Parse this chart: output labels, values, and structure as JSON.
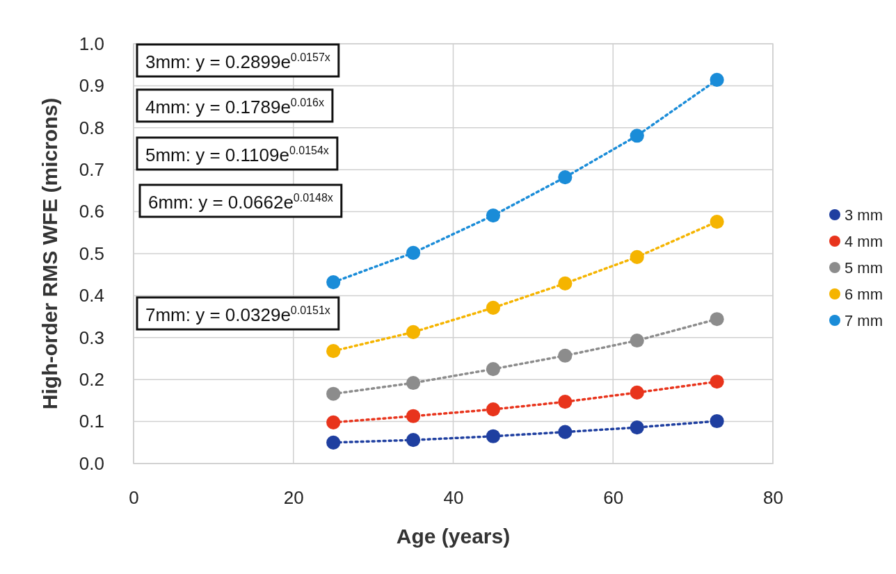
{
  "chart_data": {
    "type": "line",
    "xlabel": "Age (years)",
    "ylabel": "High-order RMS WFE (microns)",
    "x": [
      25,
      35,
      45,
      54,
      63,
      73
    ],
    "xlim": [
      0,
      80
    ],
    "xticks": [
      0,
      20,
      40,
      60,
      80
    ],
    "ylim": [
      0,
      1
    ],
    "yticks": [
      {
        "value": 0,
        "label": "0.0"
      },
      0.1,
      0.2,
      0.3,
      0.4,
      0.5,
      0.6,
      0.7,
      0.8,
      0.9,
      {
        "value": 1,
        "label": "1.0"
      }
    ],
    "grid": true,
    "legend": "right",
    "marker": "circle",
    "line_style": "dotted",
    "series": [
      {
        "name": "3 mm",
        "color": "#1f3fa0",
        "values": [
          0.05,
          0.056,
          0.065,
          0.075,
          0.086,
          0.101
        ]
      },
      {
        "name": "4 mm",
        "color": "#e8341c",
        "values": [
          0.098,
          0.113,
          0.129,
          0.147,
          0.169,
          0.195
        ]
      },
      {
        "name": "5 mm",
        "color": "#8c8c8c",
        "values": [
          0.166,
          0.192,
          0.225,
          0.257,
          0.293,
          0.344
        ]
      },
      {
        "name": "6 mm",
        "color": "#f5b400",
        "values": [
          0.268,
          0.313,
          0.371,
          0.429,
          0.492,
          0.576
        ]
      },
      {
        "name": "7 mm",
        "color": "#1a8cd8",
        "values": [
          0.432,
          0.502,
          0.591,
          0.682,
          0.781,
          0.914
        ]
      }
    ],
    "annotations": [
      "3mm: y = 0.2899e$^{0.0157x}$",
      "4mm: y = 0.1789e$^{0.016x}$",
      "5mm: y = 0.1109e$^{0.0154x}$",
      "6mm: y = 0.0662e$^{0.0148x}$",
      "7mm: y = 0.0329e$^{0.0151x}$"
    ]
  }
}
